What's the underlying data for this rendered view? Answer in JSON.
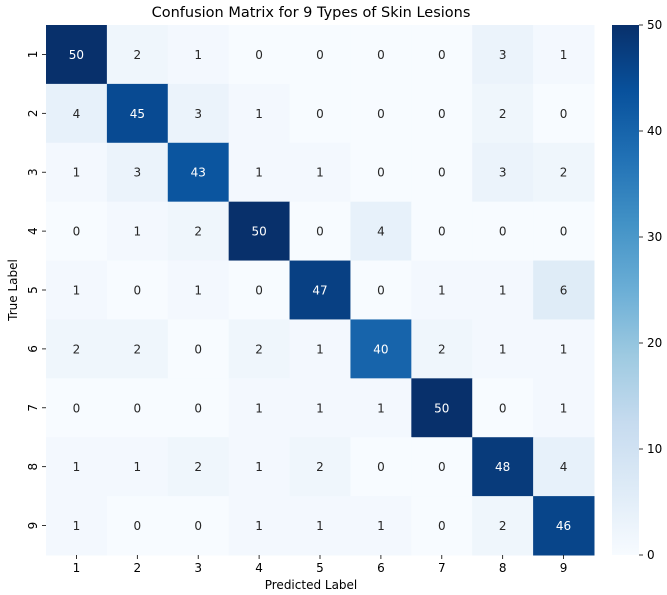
{
  "chart_data": {
    "type": "heatmap",
    "title": "Confusion Matrix for 9 Types of Skin Lesions",
    "xlabel": "Predicted Label",
    "ylabel": "True Label",
    "x_categories": [
      "1",
      "2",
      "3",
      "4",
      "5",
      "6",
      "7",
      "8",
      "9"
    ],
    "y_categories": [
      "1",
      "2",
      "3",
      "4",
      "5",
      "6",
      "7",
      "8",
      "9"
    ],
    "values": [
      [
        50,
        2,
        1,
        0,
        0,
        0,
        0,
        3,
        1
      ],
      [
        4,
        45,
        3,
        1,
        0,
        0,
        0,
        2,
        0
      ],
      [
        1,
        3,
        43,
        1,
        1,
        0,
        0,
        3,
        2
      ],
      [
        0,
        1,
        2,
        50,
        0,
        4,
        0,
        0,
        0
      ],
      [
        1,
        0,
        1,
        0,
        47,
        0,
        1,
        1,
        6
      ],
      [
        2,
        2,
        0,
        2,
        1,
        40,
        2,
        1,
        1
      ],
      [
        0,
        0,
        0,
        1,
        1,
        1,
        50,
        0,
        1
      ],
      [
        1,
        1,
        2,
        1,
        2,
        0,
        0,
        48,
        4
      ],
      [
        1,
        0,
        0,
        1,
        1,
        1,
        0,
        2,
        46
      ]
    ],
    "colormap": "Blues",
    "vmin": 0,
    "vmax": 50,
    "colorbar_ticks": [
      "0",
      "10",
      "20",
      "30",
      "40",
      "50"
    ],
    "colorbar_tick_values": [
      0,
      10,
      20,
      30,
      40,
      50
    ],
    "colors": {
      "low": "#f7fbff",
      "high": "#08306b",
      "text_dark": "#262626",
      "text_light": "#ffffff"
    }
  }
}
